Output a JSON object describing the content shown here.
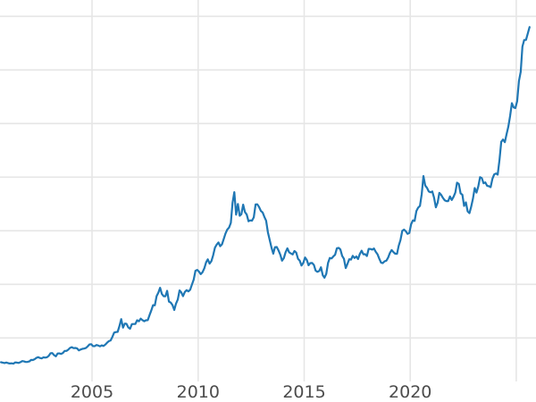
{
  "figure": {
    "background": "#ffffff",
    "title": ""
  },
  "chart_data": {
    "type": "line",
    "title": "",
    "xlabel": "",
    "ylabel": "",
    "grid": true,
    "legend": "none",
    "x_axis": {
      "xlim": [
        2000.66,
        2025.93
      ],
      "gridline_years": [
        2005,
        2010,
        2015,
        2020,
        2025
      ],
      "tick_years": [
        2005,
        2010,
        2015,
        2020
      ],
      "tick_labels": [
        "2005",
        "2010",
        "2015",
        "2020"
      ]
    },
    "y_axis": {
      "ylim": [
        152.5,
        3652.5
      ],
      "gridline_values": [
        500,
        1000,
        1500,
        2000,
        2500,
        3000,
        3500
      ],
      "tick_labels_visible": false
    },
    "style": {
      "line_color": "#1f77b4",
      "line_width": 2.2,
      "grid_color": "#e6e6e6",
      "grid_width": 1.6,
      "tick_label_color": "#4c4c4c",
      "tick_label_size": 19,
      "background": "#ffffff"
    },
    "series": [
      {
        "name": "series-1",
        "color": "#1f77b4",
        "interval": "monthly",
        "start_year": 2000,
        "start_month": 9,
        "values": [
          273,
          270,
          266,
          271,
          265,
          262,
          263,
          260,
          272,
          270,
          267,
          274,
          284,
          281,
          276,
          277,
          281,
          295,
          294,
          302,
          314,
          321,
          313,
          309,
          319,
          317,
          320,
          333,
          357,
          359,
          340,
          328,
          355,
          356,
          351,
          360,
          379,
          379,
          390,
          407,
          414,
          405,
          407,
          403,
          384,
          392,
          398,
          401,
          406,
          421,
          439,
          442,
          424,
          423,
          434,
          429,
          422,
          431,
          425,
          438,
          456,
          470,
          477,
          510,
          550,
          555,
          557,
          611,
          676,
          596,
          634,
          632,
          598,
          586,
          628,
          630,
          631,
          665,
          655,
          680,
          667,
          656,
          665,
          666,
          713,
          755,
          806,
          804,
          890,
          922,
          968,
          910,
          889,
          889,
          940,
          839,
          830,
          807,
          761,
          820,
          858,
          943,
          924,
          890,
          929,
          946,
          934,
          950,
          997,
          1043,
          1127,
          1135,
          1118,
          1095,
          1113,
          1149,
          1205,
          1233,
          1193,
          1216,
          1271,
          1342,
          1370,
          1391,
          1356,
          1373,
          1424,
          1474,
          1511,
          1529,
          1573,
          1760,
          1860,
          1650,
          1750,
          1640,
          1654,
          1743,
          1674,
          1651,
          1588,
          1597,
          1594,
          1626,
          1745,
          1747,
          1722,
          1685,
          1671,
          1628,
          1593,
          1485,
          1414,
          1343,
          1286,
          1347,
          1348,
          1316,
          1276,
          1221,
          1244,
          1300,
          1336,
          1298,
          1288,
          1279,
          1311,
          1296,
          1238,
          1222,
          1176,
          1200,
          1251,
          1227,
          1178,
          1198,
          1199,
          1181,
          1128,
          1117,
          1124,
          1159,
          1086,
          1062,
          1097,
          1199,
          1246,
          1242,
          1260,
          1276,
          1337,
          1340,
          1326,
          1266,
          1238,
          1152,
          1192,
          1234,
          1231,
          1266,
          1246,
          1260,
          1236,
          1283,
          1314,
          1280,
          1282,
          1264,
          1331,
          1330,
          1324,
          1334,
          1303,
          1281,
          1238,
          1202,
          1198,
          1215,
          1221,
          1250,
          1292,
          1320,
          1301,
          1286,
          1284,
          1359,
          1413,
          1499,
          1511,
          1495,
          1472,
          1479,
          1561,
          1597,
          1592,
          1683,
          1716,
          1732,
          1843,
          2010,
          1922,
          1900,
          1866,
          1858,
          1867,
          1808,
          1718,
          1762,
          1853,
          1835,
          1807,
          1784,
          1777,
          1777,
          1820,
          1787,
          1817,
          1856,
          1948,
          1937,
          1848,
          1836,
          1732,
          1765,
          1681,
          1664,
          1726,
          1798,
          1898,
          1856,
          1913,
          2000,
          1992,
          1943,
          1951,
          1919,
          1916,
          1907,
          1984,
          2026,
          2034,
          2023,
          2158,
          2330,
          2351,
          2326,
          2398,
          2470,
          2570,
          2690,
          2651,
          2644,
          2708,
          2897,
          2983,
          3218,
          3280,
          3280,
          3340,
          3400
        ]
      }
    ]
  }
}
